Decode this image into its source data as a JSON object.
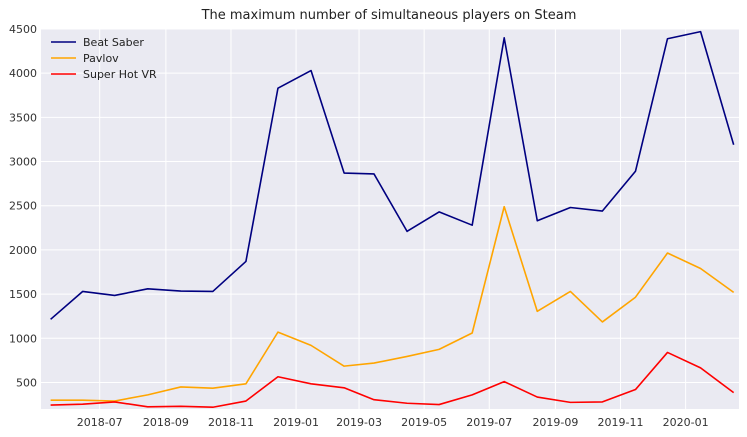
{
  "chart_data": {
    "type": "line",
    "title": "The maximum number of simultaneous players on Steam",
    "xlabel": "",
    "ylabel": "",
    "x": [
      "2018-05-16",
      "2018-06-15",
      "2018-07-15",
      "2018-08-15",
      "2018-09-15",
      "2018-10-15",
      "2018-11-15",
      "2018-12-15",
      "2019-01-15",
      "2019-02-15",
      "2019-03-15",
      "2019-04-15",
      "2019-05-15",
      "2019-06-15",
      "2019-07-15",
      "2019-08-15",
      "2019-09-15",
      "2019-10-15",
      "2019-11-15",
      "2019-12-15",
      "2020-01-15",
      "2020-02-15"
    ],
    "series": [
      {
        "name": "Beat Saber",
        "color": "#000080",
        "values": [
          1215,
          1530,
          1485,
          1560,
          1535,
          1530,
          1870,
          3830,
          4030,
          2870,
          2860,
          2210,
          2430,
          2280,
          4400,
          2330,
          2480,
          2440,
          2890,
          4390,
          4470,
          3190
        ]
      },
      {
        "name": "Pavlov",
        "color": "#ffa500",
        "values": [
          300,
          300,
          290,
          360,
          450,
          435,
          485,
          1070,
          920,
          685,
          720,
          795,
          875,
          1060,
          2490,
          1305,
          1530,
          1185,
          1465,
          1965,
          1790,
          1520
        ]
      },
      {
        "name": "Super Hot VR",
        "color": "#ff0000",
        "values": [
          245,
          255,
          280,
          225,
          230,
          220,
          290,
          565,
          485,
          440,
          305,
          265,
          250,
          360,
          510,
          335,
          275,
          280,
          420,
          840,
          665,
          385
        ]
      }
    ],
    "x_ticks": [
      "2018-07",
      "2018-09",
      "2018-11",
      "2019-01",
      "2019-03",
      "2019-05",
      "2019-07",
      "2019-09",
      "2019-11",
      "2020-01"
    ],
    "y_ticks": [
      "500",
      "1000",
      "1500",
      "2000",
      "2500",
      "3000",
      "3500",
      "4000",
      "4500"
    ],
    "ylim": [
      200,
      4500
    ],
    "xlim": [
      "2018-05-07",
      "2020-02-20"
    ],
    "grid": true,
    "legend_position": "top-left",
    "background": "#eaeaf2",
    "gridcolor": "#ffffff"
  }
}
